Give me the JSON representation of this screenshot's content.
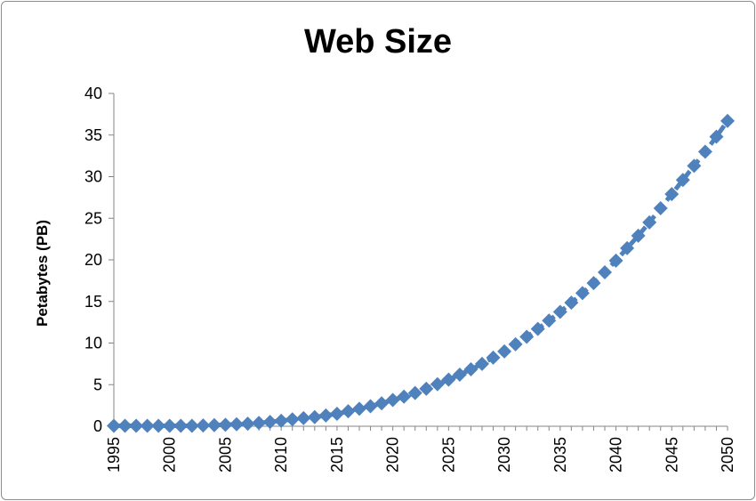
{
  "chart_data": {
    "type": "line",
    "title": "Web Size",
    "xlabel": "",
    "ylabel": "Petabytes (PB)",
    "xlim": [
      1995,
      2050
    ],
    "ylim": [
      0,
      40
    ],
    "x_ticks": [
      "1995",
      "2000",
      "2005",
      "2010",
      "2015",
      "2020",
      "2025",
      "2030",
      "2035",
      "2040",
      "2045",
      "2050"
    ],
    "y_ticks": [
      "0",
      "5",
      "10",
      "15",
      "20",
      "25",
      "30",
      "35",
      "40"
    ],
    "grid": false,
    "legend": "none",
    "series": [
      {
        "color": "#4f81bd",
        "marker": "diamond",
        "line": "dashed",
        "x": [
          1995,
          1996,
          1997,
          1998,
          1999,
          2000,
          2001,
          2002,
          2003,
          2004,
          2005,
          2006,
          2007,
          2008,
          2009,
          2010,
          2011,
          2012,
          2013,
          2014,
          2015,
          2016,
          2017,
          2018,
          2019,
          2020,
          2021,
          2022,
          2023,
          2024,
          2025,
          2026,
          2027,
          2028,
          2029,
          2030,
          2031,
          2032,
          2033,
          2034,
          2035,
          2036,
          2037,
          2038,
          2039,
          2040,
          2041,
          2042,
          2043,
          2044,
          2045,
          2046,
          2047,
          2048,
          2049,
          2050
        ],
        "values": [
          0.05,
          0.05,
          0.05,
          0.05,
          0.05,
          0.05,
          0.05,
          0.06,
          0.1,
          0.13,
          0.18,
          0.24,
          0.31,
          0.4,
          0.52,
          0.66,
          0.83,
          0.98,
          1.1,
          1.3,
          1.5,
          1.8,
          2.1,
          2.4,
          2.75,
          3.15,
          3.55,
          4.0,
          4.5,
          5.05,
          5.6,
          6.2,
          6.85,
          7.5,
          8.25,
          9.0,
          9.85,
          10.75,
          11.7,
          12.7,
          13.75,
          14.85,
          16.0,
          17.2,
          18.5,
          19.9,
          21.4,
          22.9,
          24.5,
          26.2,
          27.9,
          29.6,
          31.3,
          33.0,
          34.8,
          36.7
        ]
      }
    ]
  }
}
